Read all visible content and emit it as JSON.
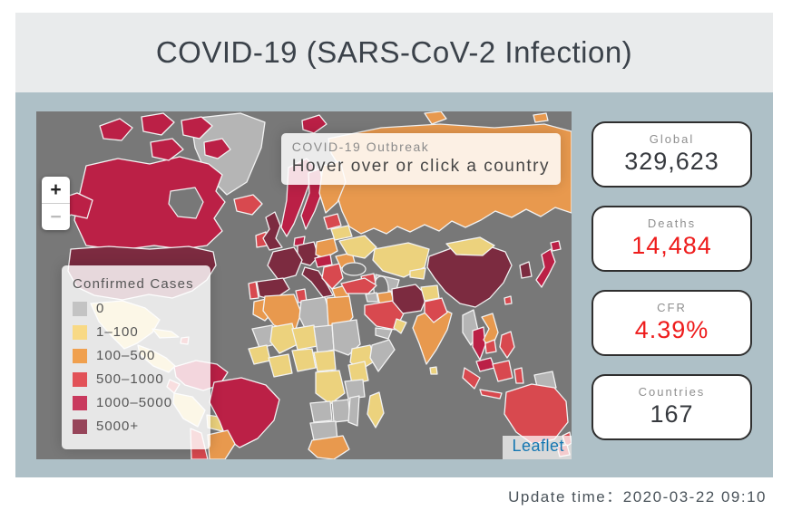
{
  "header": {
    "title": "COVID-19 (SARS-CoV-2 Infection)"
  },
  "map": {
    "info": {
      "title": "COVID-19 Outbreak",
      "subtitle": "Hover over or click a country"
    },
    "controls": {
      "zoom_in": "+",
      "zoom_out": "−"
    },
    "attribution": "Leaflet",
    "legend": {
      "title": "Confirmed Cases",
      "items": [
        {
          "label": "0",
          "color": "#c3c3c3"
        },
        {
          "label": "1–100",
          "color": "#f8d985"
        },
        {
          "label": "100–500",
          "color": "#f0a04e"
        },
        {
          "label": "500–1000",
          "color": "#e25258"
        },
        {
          "label": "1000–5000",
          "color": "#c93a5e"
        },
        {
          "label": "5000+",
          "color": "#97455a"
        }
      ]
    },
    "palette": {
      "ocean": "#787878",
      "l0": "#b5b5b5",
      "l1": "#ecd27d",
      "l2": "#e8994e",
      "l3": "#d8494f",
      "l4": "#bb2046",
      "l5": "#7c2b40"
    }
  },
  "stats": {
    "cards": [
      {
        "label": "Global",
        "value": "329,623",
        "color": "#36393e"
      },
      {
        "label": "Deaths",
        "value": "14,484",
        "color": "#ee1c1c"
      },
      {
        "label": "CFR",
        "value": "4.39%",
        "color": "#ee1c1c"
      },
      {
        "label": "Countries",
        "value": "167",
        "color": "#36393e"
      }
    ]
  },
  "footer": {
    "update_label": "Update time：",
    "update_value": "2020-03-22 09:10"
  }
}
